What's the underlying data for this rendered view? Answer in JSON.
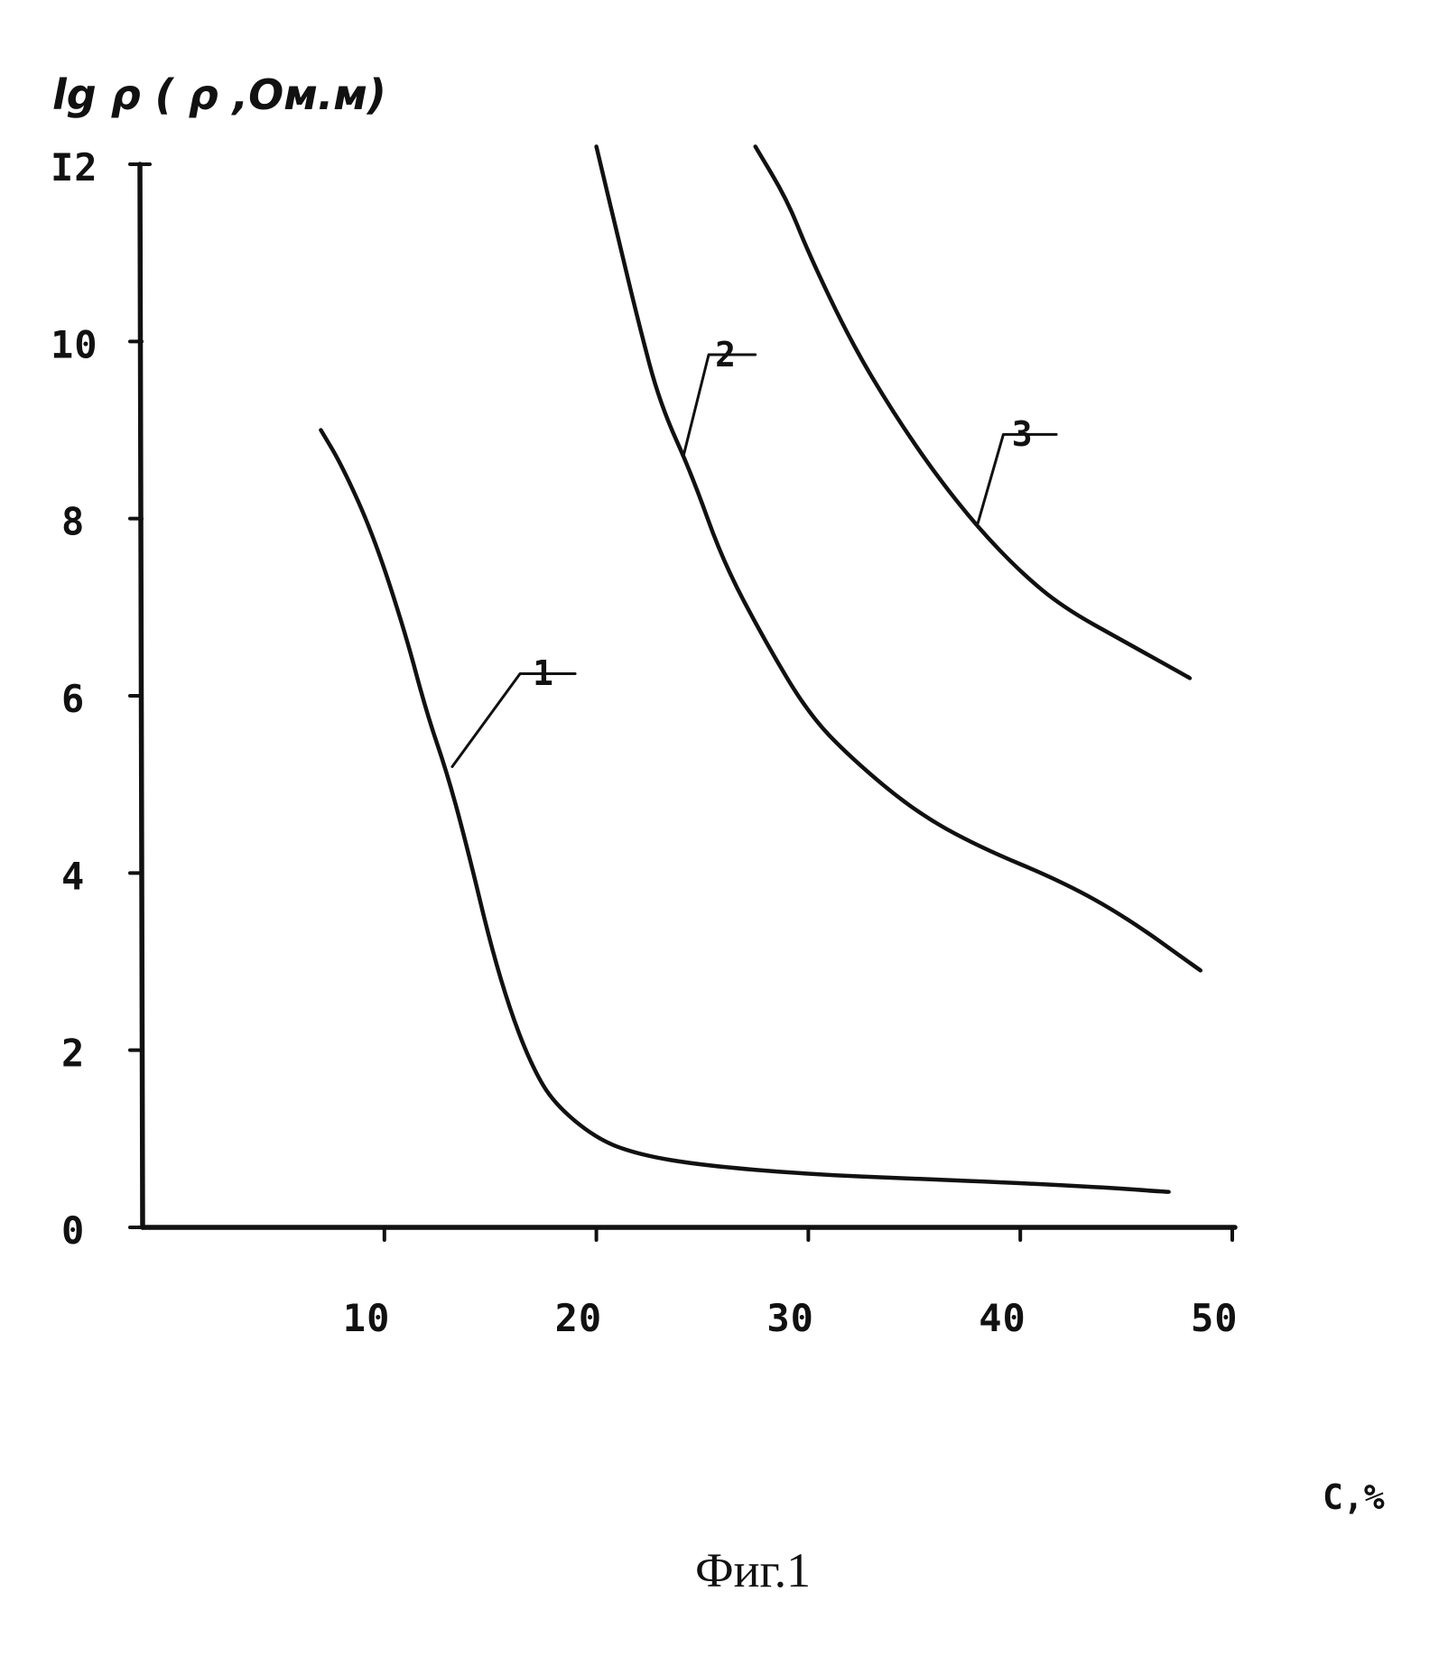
{
  "chart_data": {
    "type": "line",
    "title": "Фиг.1",
    "ylabel": "lg ρ ( ρ ,Ом.м)",
    "xlabel": "C,%",
    "x_ticks": [
      "10",
      "20",
      "30",
      "40",
      "50"
    ],
    "y_ticks": [
      "0",
      "2",
      "4",
      "6",
      "8",
      "10",
      "I2"
    ],
    "xlim": [
      0,
      50
    ],
    "ylim": [
      0,
      12
    ],
    "grid": false,
    "series": [
      {
        "name": "1",
        "points": [
          [
            7,
            9
          ],
          [
            8,
            8.6
          ],
          [
            9.5,
            7.8
          ],
          [
            11,
            6.7
          ],
          [
            12,
            5.8
          ],
          [
            13,
            5.1
          ],
          [
            14,
            4.2
          ],
          [
            15,
            3.2
          ],
          [
            16,
            2.4
          ],
          [
            17,
            1.8
          ],
          [
            18,
            1.4
          ],
          [
            20,
            1.0
          ],
          [
            22,
            0.82
          ],
          [
            25,
            0.7
          ],
          [
            30,
            0.6
          ],
          [
            35,
            0.55
          ],
          [
            40,
            0.5
          ],
          [
            44,
            0.45
          ],
          [
            47,
            0.4
          ]
        ]
      },
      {
        "name": "2",
        "points": [
          [
            20,
            12.2
          ],
          [
            21,
            11.2
          ],
          [
            22,
            10.2
          ],
          [
            23,
            9.3
          ],
          [
            24.5,
            8.5
          ],
          [
            26,
            7.5
          ],
          [
            28,
            6.6
          ],
          [
            30,
            5.8
          ],
          [
            32,
            5.3
          ],
          [
            35,
            4.7
          ],
          [
            38,
            4.3
          ],
          [
            42,
            3.9
          ],
          [
            45,
            3.5
          ],
          [
            48.5,
            2.9
          ]
        ]
      },
      {
        "name": "3",
        "points": [
          [
            27.5,
            12.2
          ],
          [
            29,
            11.6
          ],
          [
            30,
            11
          ],
          [
            32,
            10
          ],
          [
            34,
            9.2
          ],
          [
            36,
            8.5
          ],
          [
            38,
            7.9
          ],
          [
            40,
            7.4
          ],
          [
            42,
            7
          ],
          [
            45,
            6.6
          ],
          [
            48,
            6.2
          ]
        ]
      }
    ]
  }
}
